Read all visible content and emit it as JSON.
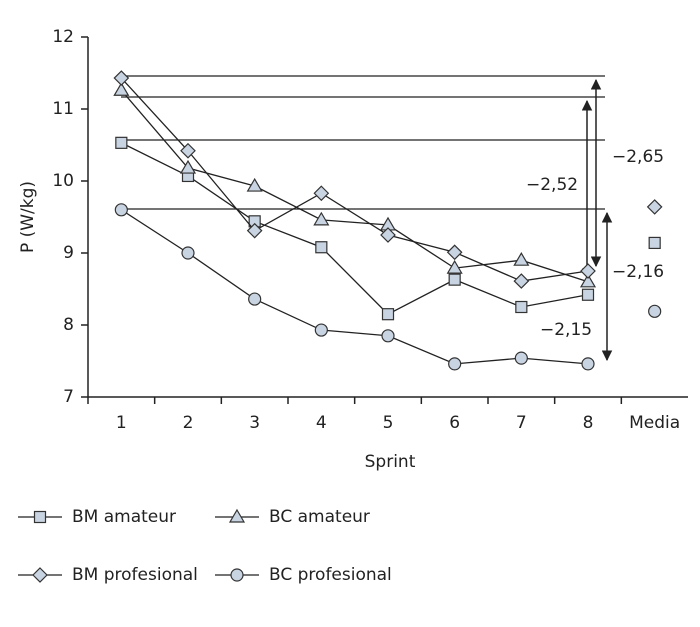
{
  "chart_data": {
    "type": "line",
    "xlabel": "Sprint",
    "ylabel": "P (W/kg)",
    "categories": [
      "1",
      "2",
      "3",
      "4",
      "5",
      "6",
      "7",
      "8",
      "Media"
    ],
    "ylim": [
      7,
      12
    ],
    "yticks": [
      7,
      8,
      9,
      10,
      11,
      12
    ],
    "series": [
      {
        "name": "BM amateur",
        "marker": "square",
        "color": "#c9d4e2",
        "values": [
          10.53,
          10.07,
          9.44,
          9.08,
          8.15,
          8.63,
          8.25,
          8.42,
          9.14
        ]
      },
      {
        "name": "BC amateur",
        "marker": "triangle",
        "color": "#c9d4e2",
        "values": [
          11.26,
          10.18,
          9.93,
          9.46,
          9.39,
          8.79,
          8.9,
          8.6,
          null
        ]
      },
      {
        "name": "BM profesional",
        "marker": "diamond",
        "color": "#c9d4e2",
        "values": [
          11.43,
          10.42,
          9.31,
          9.83,
          9.25,
          9.01,
          8.61,
          8.75,
          9.64
        ]
      },
      {
        "name": "BC profesional",
        "marker": "circle",
        "color": "#c9d4e2",
        "values": [
          9.6,
          9.0,
          8.36,
          7.93,
          7.85,
          7.46,
          7.54,
          7.46,
          8.19
        ]
      }
    ],
    "annotations": [
      "−2,65",
      "−2,52",
      "−2,16",
      "−2,15"
    ]
  }
}
